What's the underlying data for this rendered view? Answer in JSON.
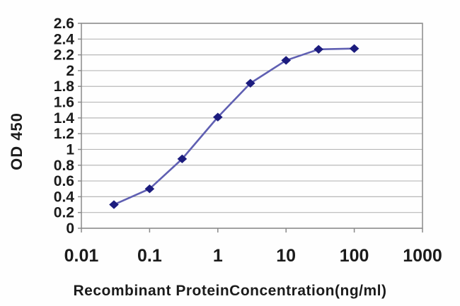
{
  "figure": {
    "ylabel": "OD 450",
    "xlabel": "Recombinant ProteinConcentration(ng/ml)"
  },
  "chart_data": {
    "type": "line",
    "title": "",
    "xlabel": "Recombinant ProteinConcentration(ng/ml)",
    "ylabel": "OD 450",
    "x_scale": "log",
    "xlim": [
      0.01,
      1000
    ],
    "ylim": [
      0,
      2.6
    ],
    "grid": true,
    "legend": false,
    "series": [
      {
        "name": "OD 450",
        "x": [
          0.03,
          0.1,
          0.3,
          1,
          3,
          10,
          30,
          100
        ],
        "y": [
          0.3,
          0.5,
          0.88,
          1.41,
          1.84,
          2.13,
          2.27,
          2.28
        ],
        "marker": "diamond"
      }
    ],
    "xtick_values": [
      0.01,
      0.1,
      1,
      10,
      100,
      1000
    ],
    "xtick_labels": [
      "0.01",
      "0.1",
      "1",
      "10",
      "100",
      "1000"
    ],
    "ytick_values": [
      0,
      0.2,
      0.4,
      0.6,
      0.8,
      1,
      1.2,
      1.4,
      1.6,
      1.8,
      2,
      2.2,
      2.4,
      2.6
    ],
    "ytick_labels": [
      "0",
      "0.2",
      "0.4",
      "0.6",
      "0.8",
      "1",
      "1.2",
      "1.4",
      "1.6",
      "1.8",
      "2",
      "2.2",
      "2.4",
      "2.6"
    ],
    "colors": {
      "line": "#5f5fb2",
      "marker": "#1c1c7e",
      "grid": "#b8b8b8",
      "frame": "#8a8a8a",
      "text": "#1b1b1b",
      "background": "#fefefe"
    }
  }
}
